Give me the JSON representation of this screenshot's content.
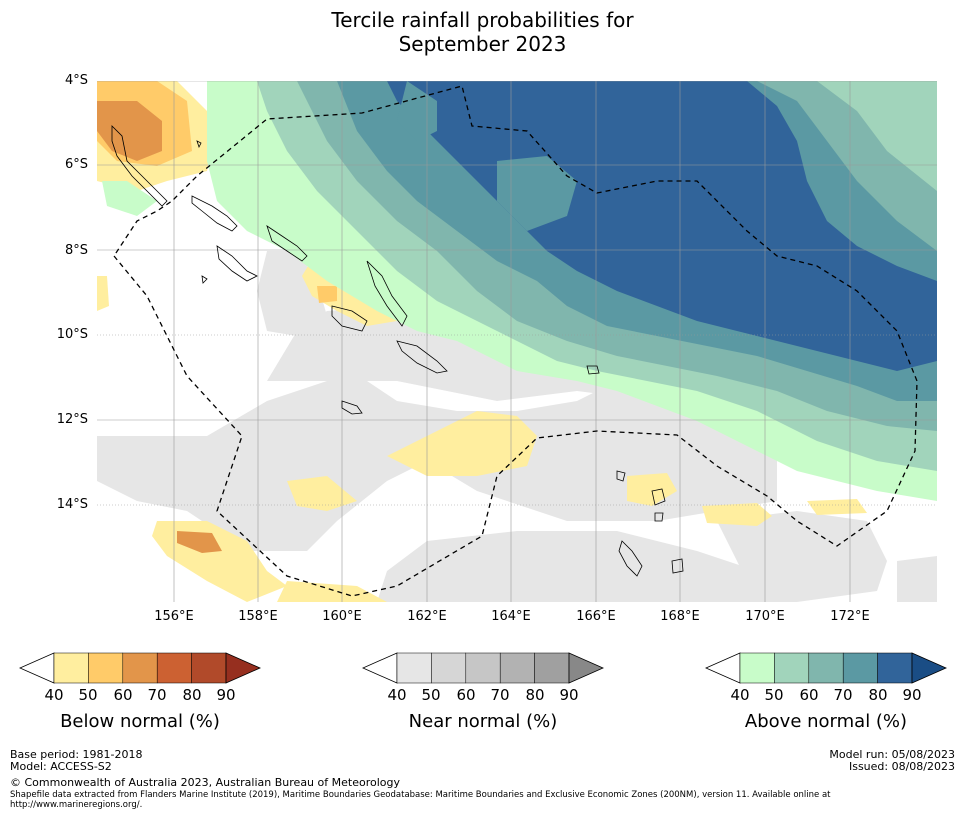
{
  "title_line1": "Tercile rainfall probabilities for",
  "title_line2": "September 2023",
  "map": {
    "lat_labels": [
      "4°S",
      "6°S",
      "8°S",
      "10°S",
      "12°S",
      "14°S"
    ],
    "lon_labels": [
      "156°E",
      "158°E",
      "160°E",
      "162°E",
      "164°E",
      "166°E",
      "168°E",
      "170°E",
      "172°E"
    ]
  },
  "legends": [
    {
      "title": "Below normal (%)",
      "ticks": [
        "40",
        "50",
        "60",
        "70",
        "80",
        "90"
      ],
      "colors": [
        "#ffee9f",
        "#ffcb69",
        "#e2954a",
        "#cc6132",
        "#b14a2a",
        "#962f1f"
      ]
    },
    {
      "title": "Near normal (%)",
      "ticks": [
        "40",
        "50",
        "60",
        "70",
        "80",
        "90"
      ],
      "colors": [
        "#e6e6e6",
        "#d6d6d6",
        "#c6c6c6",
        "#b2b2b2",
        "#a0a0a0",
        "#888888"
      ]
    },
    {
      "title": "Above normal (%)",
      "ticks": [
        "40",
        "50",
        "60",
        "70",
        "80",
        "90"
      ],
      "colors": [
        "#c8fcc9",
        "#a1d4bb",
        "#80b6ad",
        "#5b99a3",
        "#31649a",
        "#1a4d85"
      ]
    }
  ],
  "footer": {
    "base_period": "Base period: 1981-2018",
    "model": "Model: ACCESS-S2",
    "model_run": "Model run: 05/08/2023",
    "issued": "Issued: 08/08/2023",
    "copyright": "© Commonwealth of Australia 2023, Australian Bureau of Meteorology",
    "shapefile_line1": "Shapefile data extracted from Flanders Marine Institute (2019), Maritime Boundaries Geodatabase: Maritime Boundaries and Exclusive Economic Zones (200NM), version 11. Available online at",
    "shapefile_line2": "http://www.marineregions.org/."
  }
}
